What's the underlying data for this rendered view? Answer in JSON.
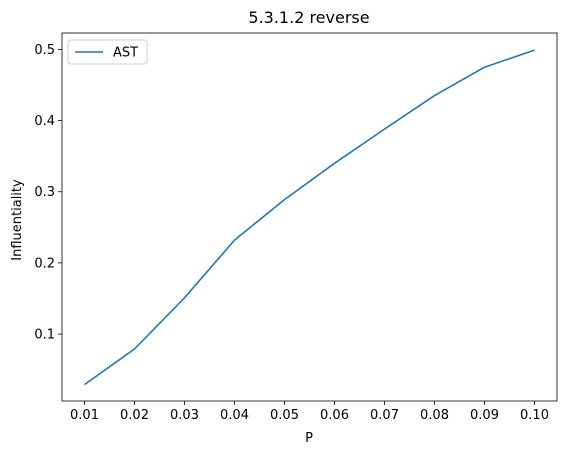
{
  "chart_data": {
    "type": "line",
    "title": "5.3.1.2 reverse",
    "xlabel": "P",
    "ylabel": "Influentiality",
    "x": [
      0.01,
      0.02,
      0.03,
      0.04,
      0.05,
      0.06,
      0.07,
      0.08,
      0.09,
      0.1
    ],
    "x_tick_labels": [
      "0.01",
      "0.02",
      "0.03",
      "0.04",
      "0.05",
      "0.06",
      "0.07",
      "0.08",
      "0.09",
      "0.10"
    ],
    "y_ticks": [
      0.1,
      0.2,
      0.3,
      0.4,
      0.5
    ],
    "y_tick_labels": [
      "0.1",
      "0.2",
      "0.3",
      "0.4",
      "0.5"
    ],
    "xlim": [
      0.0055,
      0.1045
    ],
    "ylim": [
      0.006,
      0.523
    ],
    "grid": false,
    "legend_position": "top-left",
    "series": [
      {
        "name": "AST",
        "color": "#1f77b4",
        "values": [
          0.029,
          0.079,
          0.151,
          0.232,
          0.289,
          0.34,
          0.388,
          0.435,
          0.475,
          0.499
        ]
      }
    ]
  }
}
